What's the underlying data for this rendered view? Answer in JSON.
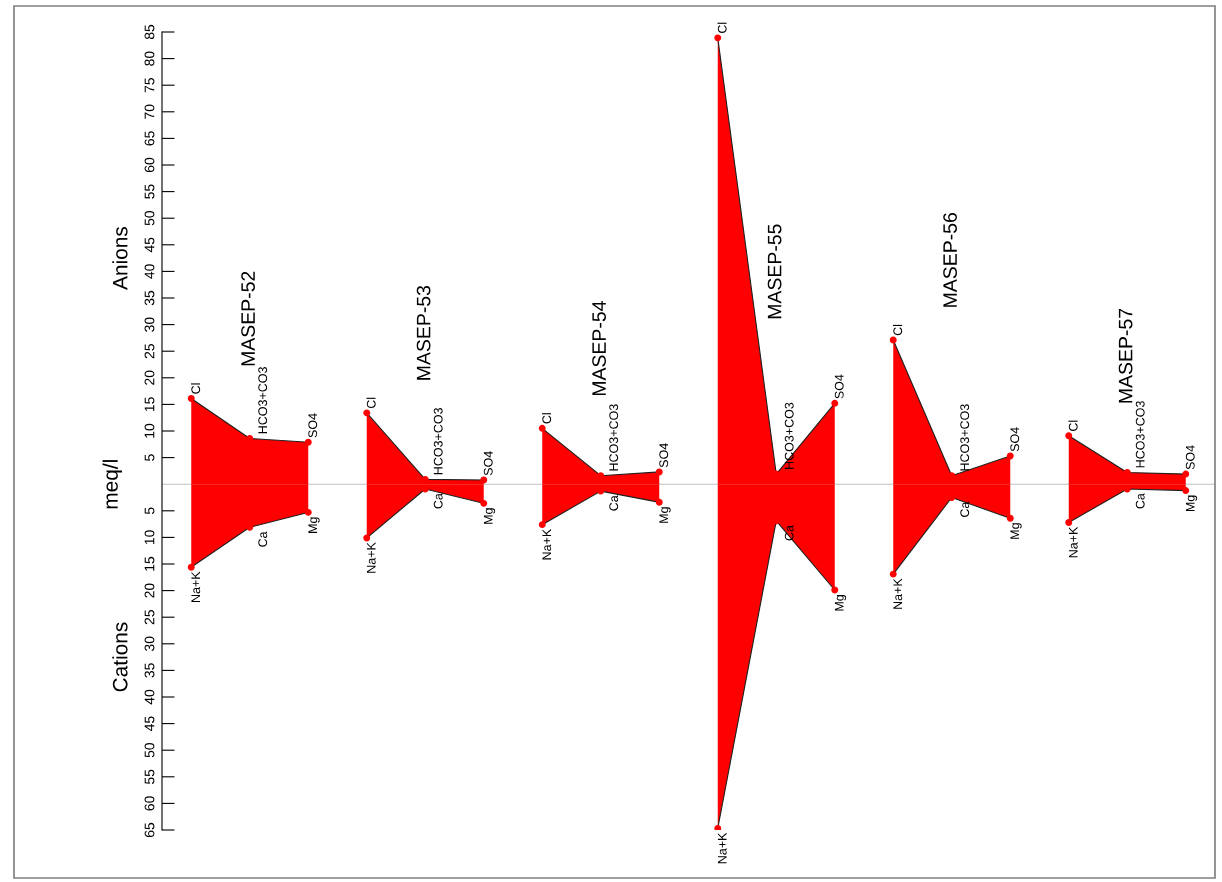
{
  "chart_data": {
    "type": "area",
    "ylabel": "meq/l",
    "annotations": [
      "Anions",
      "Cations"
    ],
    "categories": [
      null,
      null,
      null,
      null,
      null,
      null,
      null,
      null,
      null,
      null,
      null,
      null,
      null,
      null,
      null,
      null,
      null,
      null
    ],
    "series": [
      {
        "name": "MASEP-52",
        "color": "#ff0000",
        "values": [
          16.1,
          8.6,
          7.9,
          null,
          null,
          null,
          null,
          null,
          null,
          null,
          null,
          null,
          null,
          null,
          null,
          null,
          null,
          null
        ],
        "value_labels": [
          "Cl",
          "HCO3+CO3",
          "SO4",
          null,
          null,
          null,
          null,
          null,
          null,
          null,
          null,
          null,
          null,
          null,
          null,
          null,
          null,
          null
        ]
      },
      {
        "color": "#ff0000",
        "values": [
          -15.6,
          -8.1,
          -5.3,
          null,
          null,
          null,
          null,
          null,
          null,
          null,
          null,
          null,
          null,
          null,
          null,
          null,
          null,
          null
        ],
        "value_labels": [
          "Na+K",
          "Ca",
          "Mg",
          null,
          null,
          null,
          null,
          null,
          null,
          null,
          null,
          null,
          null,
          null,
          null,
          null,
          null,
          null
        ]
      },
      {
        "name": "MASEP-53",
        "color": "#ff0000",
        "values": [
          null,
          null,
          null,
          13.4,
          0.9,
          0.8,
          null,
          null,
          null,
          null,
          null,
          null,
          null,
          null,
          null,
          null,
          null,
          null
        ],
        "value_labels": [
          null,
          null,
          null,
          "Cl",
          "HCO3+CO3",
          "SO4",
          null,
          null,
          null,
          null,
          null,
          null,
          null,
          null,
          null,
          null,
          null,
          null
        ]
      },
      {
        "color": "#ff0000",
        "values": [
          null,
          null,
          null,
          -10.1,
          -0.9,
          -3.6,
          null,
          null,
          null,
          null,
          null,
          null,
          null,
          null,
          null,
          null,
          null,
          null
        ],
        "value_labels": [
          null,
          null,
          null,
          "Na+K",
          "Ca",
          "Mg",
          null,
          null,
          null,
          null,
          null,
          null,
          null,
          null,
          null,
          null,
          null,
          null
        ]
      },
      {
        "name": "MASEP-54",
        "color": "#ff0000",
        "values": [
          null,
          null,
          null,
          null,
          null,
          null,
          10.5,
          1.6,
          2.3,
          null,
          null,
          null,
          null,
          null,
          null,
          null,
          null,
          null
        ],
        "value_labels": [
          null,
          null,
          null,
          null,
          null,
          null,
          "Cl",
          "HCO3+CO3",
          "SO4",
          null,
          null,
          null,
          null,
          null,
          null,
          null,
          null,
          null
        ]
      },
      {
        "color": "#ff0000",
        "values": [
          null,
          null,
          null,
          null,
          null,
          null,
          -7.6,
          -1.3,
          -3.4,
          null,
          null,
          null,
          null,
          null,
          null,
          null,
          null,
          null
        ],
        "value_labels": [
          null,
          null,
          null,
          null,
          null,
          null,
          "Na+K",
          "Ca",
          "Mg",
          null,
          null,
          null,
          null,
          null,
          null,
          null,
          null,
          null
        ]
      },
      {
        "name": "MASEP-55",
        "color": "#ff0000",
        "values": [
          null,
          null,
          null,
          null,
          null,
          null,
          null,
          null,
          null,
          83.9,
          1.9,
          15.2,
          null,
          null,
          null,
          null,
          null,
          null
        ],
        "value_labels": [
          null,
          null,
          null,
          null,
          null,
          null,
          null,
          null,
          null,
          "Cl",
          "HCO3+CO3",
          "SO4",
          null,
          null,
          null,
          null,
          null,
          null
        ]
      },
      {
        "color": "#ff0000",
        "values": [
          null,
          null,
          null,
          null,
          null,
          null,
          null,
          null,
          null,
          -64.7,
          -6.9,
          -19.9,
          null,
          null,
          null,
          null,
          null,
          null
        ],
        "value_labels": [
          null,
          null,
          null,
          null,
          null,
          null,
          null,
          null,
          null,
          "Na+K",
          "Ca",
          "Mg",
          null,
          null,
          null,
          null,
          null,
          null
        ]
      },
      {
        "name": "MASEP-56",
        "color": "#ff0000",
        "values": [
          null,
          null,
          null,
          null,
          null,
          null,
          null,
          null,
          null,
          null,
          null,
          null,
          27.1,
          1.6,
          5.3,
          null,
          null,
          null
        ],
        "value_labels": [
          null,
          null,
          null,
          null,
          null,
          null,
          null,
          null,
          null,
          null,
          null,
          null,
          "Cl",
          "HCO3+CO3",
          "SO4",
          null,
          null,
          null
        ]
      },
      {
        "color": "#ff0000",
        "values": [
          null,
          null,
          null,
          null,
          null,
          null,
          null,
          null,
          null,
          null,
          null,
          null,
          -16.9,
          -2.5,
          -6.4,
          null,
          null,
          null
        ],
        "value_labels": [
          null,
          null,
          null,
          null,
          null,
          null,
          null,
          null,
          null,
          null,
          null,
          null,
          "Na+K",
          "Ca",
          "Mg",
          null,
          null,
          null
        ]
      },
      {
        "name": "MASEP-57",
        "color": "#ff0000",
        "values": [
          null,
          null,
          null,
          null,
          null,
          null,
          null,
          null,
          null,
          null,
          null,
          null,
          null,
          null,
          null,
          9.1,
          2.2,
          1.9
        ],
        "value_labels": [
          null,
          null,
          null,
          null,
          null,
          null,
          null,
          null,
          null,
          null,
          null,
          null,
          null,
          null,
          null,
          "Cl",
          "HCO3+CO3",
          "SO4"
        ]
      },
      {
        "color": "#ff0000",
        "values": [
          null,
          null,
          null,
          null,
          null,
          null,
          null,
          null,
          null,
          null,
          null,
          null,
          null,
          null,
          null,
          -7.2,
          -0.9,
          -1.2
        ],
        "value_labels": [
          null,
          null,
          null,
          null,
          null,
          null,
          null,
          null,
          null,
          null,
          null,
          null,
          null,
          null,
          null,
          "Na+K",
          "Ca",
          "Mg"
        ]
      }
    ],
    "ylim": [
      -65,
      85
    ],
    "yticks": [
      85,
      80,
      75,
      70,
      65,
      60,
      55,
      50,
      45,
      40,
      35,
      30,
      25,
      20,
      15,
      10,
      5,
      {
        "value": -5,
        "label": "5"
      },
      {
        "value": -10,
        "label": "10"
      },
      {
        "value": -15,
        "label": "15"
      },
      {
        "value": -20,
        "label": "20"
      },
      {
        "value": -25,
        "label": "25"
      },
      {
        "value": -30,
        "label": "30"
      },
      {
        "value": -35,
        "label": "35"
      },
      {
        "value": -40,
        "label": "40"
      },
      {
        "value": -45,
        "label": "45"
      },
      {
        "value": -50,
        "label": "50"
      },
      {
        "value": -55,
        "label": "55"
      },
      {
        "value": -60,
        "label": "60"
      },
      {
        "value": -65,
        "label": "65"
      }
    ],
    "ref_lines": [
      {
        "axis": "y",
        "value": 0,
        "color": "#c0c0c0"
      }
    ],
    "tick_labels": "y",
    "marker": "circle",
    "legend": false,
    "grid": false
  }
}
